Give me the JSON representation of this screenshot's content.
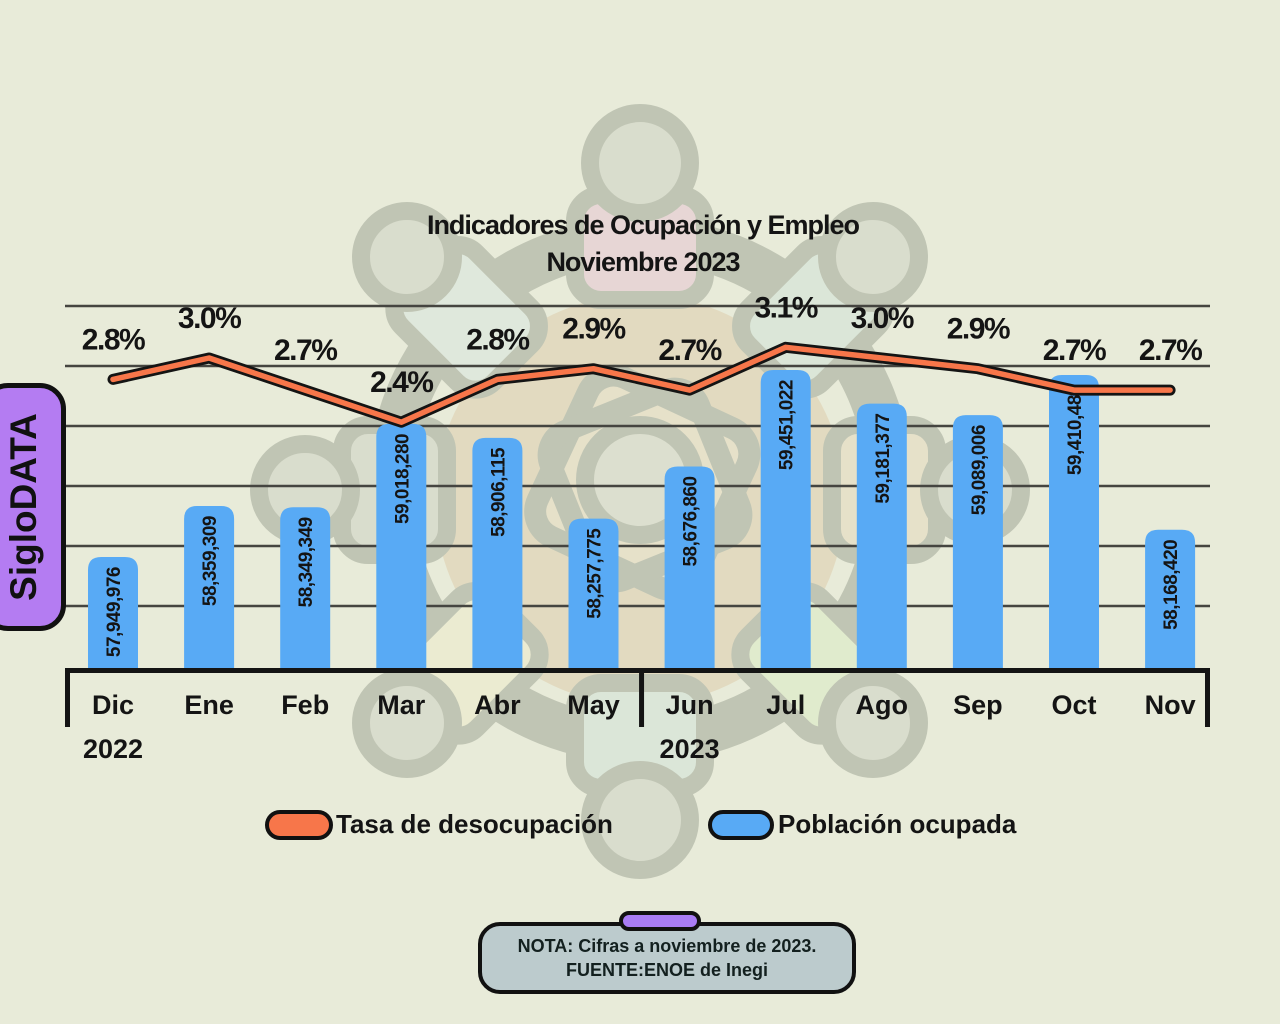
{
  "branding": {
    "badge_label": "SigloDATA",
    "badge_color": "#b47cf2"
  },
  "colors": {
    "background": "#e8ebd9",
    "bar": "#58aaf5",
    "line": "#f7764a",
    "line_outline": "#141414",
    "note_box": "#bccbcd",
    "note_tab": "#a97cf5"
  },
  "legend": {
    "items": [
      {
        "label": "Tasa de desocupación",
        "color": "#f7764a",
        "swatch": "orange-pill"
      },
      {
        "label": "Población ocupada",
        "color": "#58aaf5",
        "swatch": "blue-pill"
      }
    ]
  },
  "note": {
    "line1": "NOTA: Cifras a noviembre de 2023.",
    "line2": "FUENTE:ENOE de Inegi"
  },
  "x_axis": {
    "years": [
      {
        "label": "2022",
        "month_index": 0
      },
      {
        "label": "2023",
        "month_index": 6
      }
    ]
  },
  "chart_data": {
    "type": "combo-bar-line",
    "title": "Indicadores de Ocupación y Empleo",
    "subtitle": "Noviembre 2023",
    "categories": [
      "Dic",
      "Ene",
      "Feb",
      "Mar",
      "Abr",
      "May",
      "Jun",
      "Jul",
      "Ago",
      "Sep",
      "Oct",
      "Nov"
    ],
    "grid": true,
    "legend_position": "bottom",
    "series": [
      {
        "name": "Tasa de desocupación",
        "type": "line",
        "unit": "%",
        "color": "#f7764a",
        "values": [
          2.8,
          3.0,
          2.7,
          2.4,
          2.8,
          2.9,
          2.7,
          3.1,
          3.0,
          2.9,
          2.7,
          2.7
        ],
        "labels": [
          "2.8%",
          "3.0%",
          "2.7%",
          "2.4%",
          "2.8%",
          "2.9%",
          "2.7%",
          "3.1%",
          "3.0%",
          "2.9%",
          "2.7%",
          "2.7%"
        ]
      },
      {
        "name": "Población ocupada",
        "type": "bar",
        "unit": "personas",
        "color": "#58aaf5",
        "values": [
          57949976,
          58359309,
          58349349,
          59018280,
          58906115,
          58257775,
          58676860,
          59451022,
          59181377,
          59089006,
          59410486,
          58168420
        ],
        "labels": [
          "57,949,976",
          "58,359,309",
          "58,349,349",
          "59,018,280",
          "58,906,115",
          "58,257,775",
          "58,676,860",
          "59,451,022",
          "59,181,377",
          "59,089,006",
          "59,410,486",
          "58,168,420"
        ]
      }
    ]
  }
}
